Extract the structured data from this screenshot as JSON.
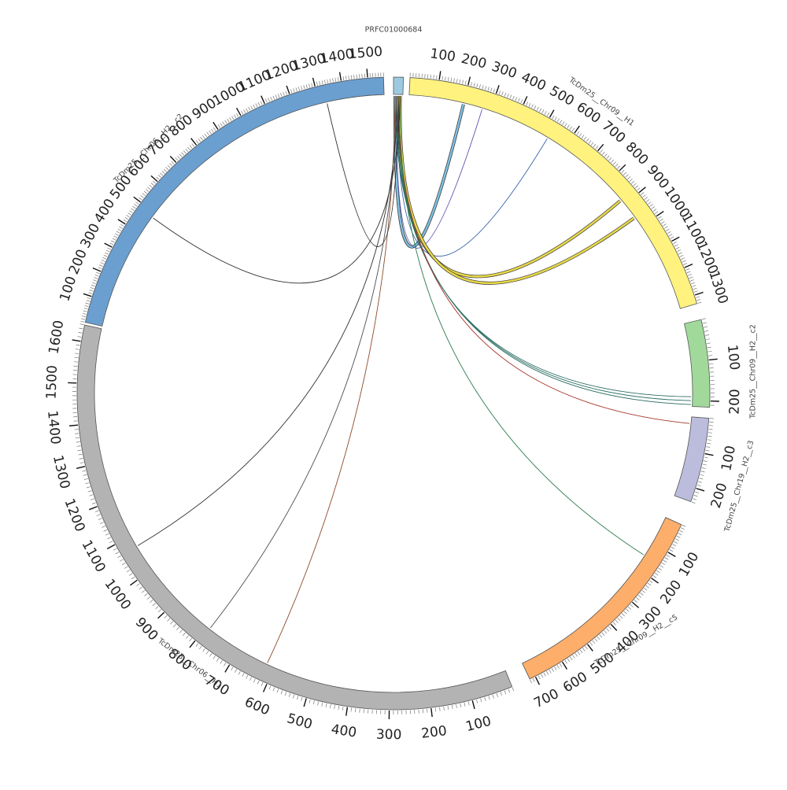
{
  "diagram": {
    "type": "circos",
    "contigs": [
      {
        "id": "prfc",
        "name": "PRFC01000684",
        "color": "#9ecae1",
        "ticks": []
      },
      {
        "id": "chr09h1",
        "name": "TcDm25__Chr09__H1",
        "color": "#fff27f",
        "ticks": [
          "100",
          "200",
          "300",
          "400",
          "500",
          "600",
          "700",
          "800",
          "900",
          "1000",
          "1100",
          "1200",
          "1300"
        ]
      },
      {
        "id": "chr09h2c2",
        "name": "TcDm25__Chr09__H2__c2",
        "color": "#a1d99b",
        "ticks": [
          "100",
          "200"
        ]
      },
      {
        "id": "chr19h2c3",
        "name": "TcDm25__Chr19__H2__c3",
        "color": "#bcbddc",
        "ticks": [
          "100",
          "200"
        ]
      },
      {
        "id": "chr09h2c5",
        "name": "TcDm25__Chr09__H2__c5",
        "color": "#fdae6b",
        "ticks": [
          "100",
          "200",
          "300",
          "400",
          "500",
          "600",
          "700"
        ]
      },
      {
        "id": "chr06h1",
        "name": "TcDm25__Chr06__H1",
        "color": "#b3b3b3",
        "ticks": [
          "100",
          "200",
          "300",
          "400",
          "500",
          "600",
          "700",
          "800",
          "900",
          "1000",
          "1100",
          "1200",
          "1300",
          "1400",
          "1500",
          "1600"
        ]
      },
      {
        "id": "chr06h2c2",
        "name": "TcDm25__Chr06__H2__c2",
        "color": "#6a9fd0",
        "ticks": [
          "100",
          "200",
          "300",
          "400",
          "500",
          "600",
          "700",
          "800",
          "900",
          "1000",
          "1100",
          "1200",
          "1300",
          "1400",
          "1500"
        ]
      }
    ],
    "links": [
      {
        "target": "chr09h1",
        "pos": 200,
        "color": "#7fbfdf",
        "ribbon": true
      },
      {
        "target": "chr09h1",
        "pos": 270,
        "color": "#6a5acd",
        "ribbon": false
      },
      {
        "target": "chr09h1",
        "pos": 530,
        "color": "#3a6fc0",
        "ribbon": false
      },
      {
        "target": "chr09h1",
        "pos": 880,
        "color": "#e8d84a",
        "ribbon": true
      },
      {
        "target": "chr09h1",
        "pos": 960,
        "color": "#e8d84a",
        "ribbon": true
      },
      {
        "target": "chr09h2c2",
        "pos": 190,
        "color": "#2f7d6f",
        "ribbon": false
      },
      {
        "target": "chr09h2c2",
        "pos": 200,
        "color": "#2f7d6f",
        "ribbon": false
      },
      {
        "target": "chr09h2c2",
        "pos": 210,
        "color": "#2f7d6f",
        "ribbon": false
      },
      {
        "target": "chr19h2c3",
        "pos": 20,
        "color": "#c0392b",
        "ribbon": false
      },
      {
        "target": "chr09h2c5",
        "pos": 150,
        "color": "#2e8b57",
        "ribbon": false
      },
      {
        "target": "chr06h1",
        "pos": 620,
        "color": "#a0522d",
        "ribbon": false
      },
      {
        "target": "chr06h1",
        "pos": 790,
        "color": "#555555",
        "ribbon": false
      },
      {
        "target": "chr06h1",
        "pos": 1070,
        "color": "#333333",
        "ribbon": false
      },
      {
        "target": "chr06h2c2",
        "pos": 1330,
        "color": "#333333",
        "ribbon": false
      },
      {
        "target": "chr06h2c2",
        "pos": 480,
        "color": "#333333",
        "ribbon": false
      }
    ]
  }
}
